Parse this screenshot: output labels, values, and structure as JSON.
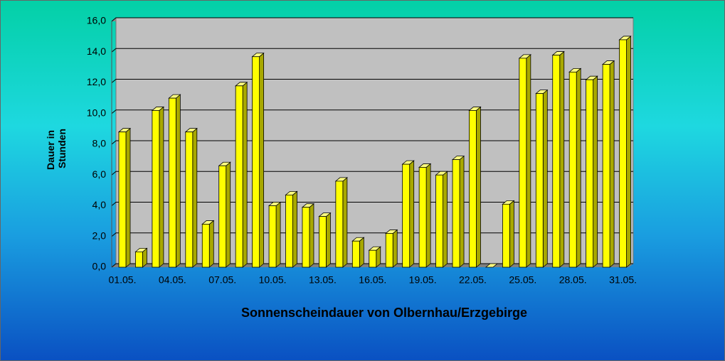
{
  "chart_data": {
    "type": "bar3d",
    "title": "Sonnenscheindauer von Olbernhau/Erzgebirge",
    "ylabel": [
      "Dauer in",
      "Stunden"
    ],
    "categories": [
      "01.05.",
      null,
      null,
      "04.05.",
      null,
      null,
      "07.05.",
      null,
      null,
      "10.05.",
      null,
      null,
      "13.05.",
      null,
      null,
      "16.05.",
      null,
      null,
      "19.05.",
      null,
      null,
      "22.05.",
      null,
      null,
      "25.05.",
      null,
      null,
      "28.05.",
      null,
      null,
      "31.05."
    ],
    "values": [
      8.8,
      1.0,
      10.2,
      11.0,
      8.8,
      2.8,
      6.6,
      11.8,
      13.7,
      4.0,
      4.7,
      3.9,
      3.3,
      5.6,
      1.7,
      1.1,
      2.2,
      6.7,
      6.5,
      6.0,
      7.0,
      10.2,
      0,
      4.1,
      13.6,
      11.3,
      13.8,
      12.7,
      12.2,
      13.2,
      14.8
    ],
    "color": "#ffff00",
    "ylim": [
      0,
      16
    ],
    "yticks": [
      {
        "value": 0,
        "label": "0,0"
      },
      {
        "value": 2,
        "label": "2,0"
      },
      {
        "value": 4,
        "label": "4,0"
      },
      {
        "value": 6,
        "label": "6,0"
      },
      {
        "value": 8,
        "label": "8,0"
      },
      {
        "value": 10,
        "label": "10,0"
      },
      {
        "value": 12,
        "label": "12,0"
      },
      {
        "value": 14,
        "label": "14,0"
      },
      {
        "value": 16,
        "label": "16,0"
      }
    ],
    "grid": true
  }
}
